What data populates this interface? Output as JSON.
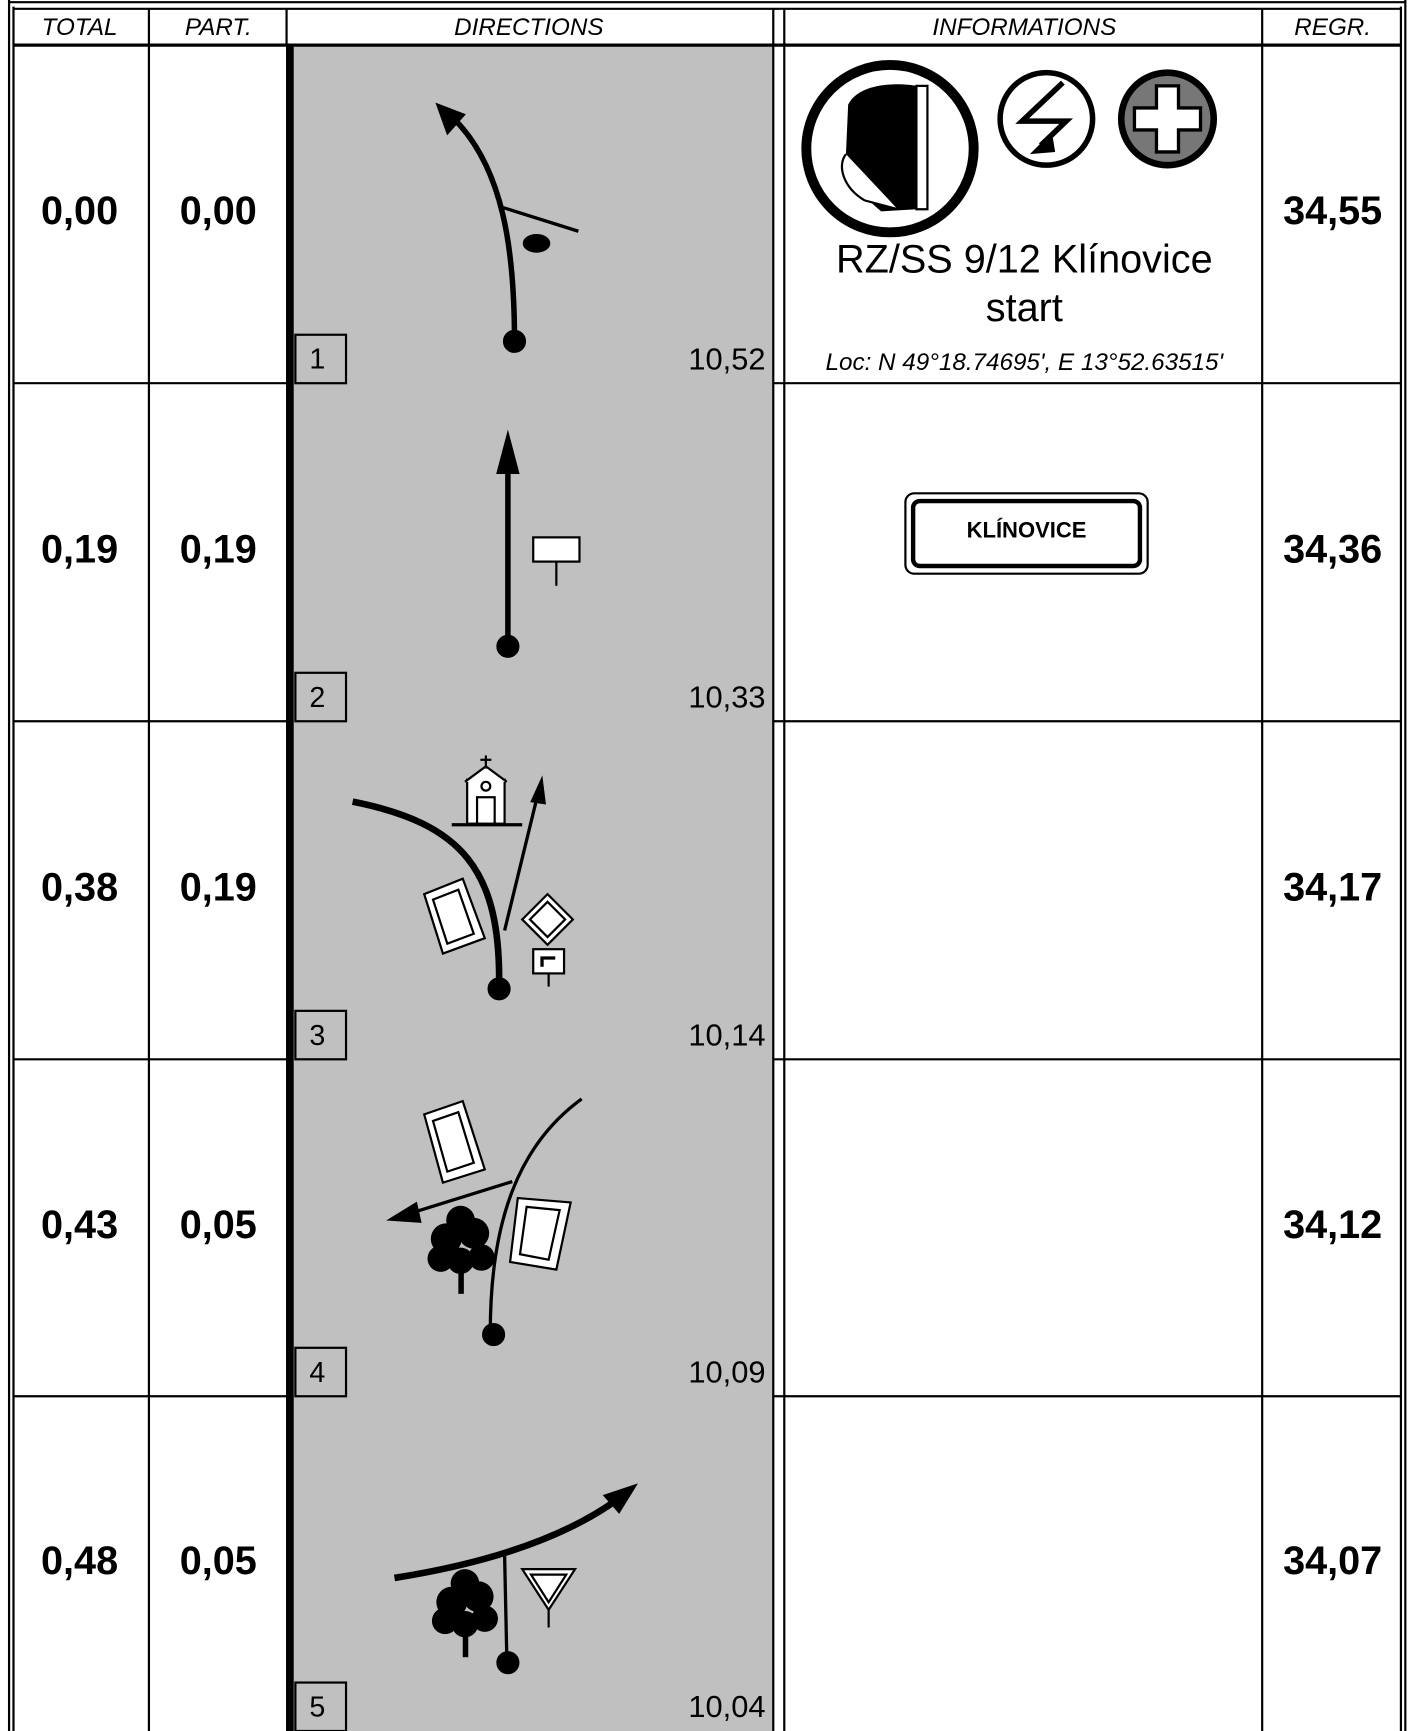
{
  "header": {
    "columns": [
      "TOTAL",
      "PART.",
      "DIRECTIONS",
      "INFORMATIONS",
      "REGR."
    ]
  },
  "rows": [
    {
      "number": "1",
      "total": "0,00",
      "partial": "0,00",
      "distance": "10,52",
      "regr": "34,55",
      "info": {
        "title_lines": [
          "RZ/SS 9/12 Klínovice",
          "start"
        ],
        "location": "Loc: N 49°18.74695', E 13°52.63515'"
      }
    },
    {
      "number": "2",
      "total": "0,19",
      "partial": "0,19",
      "distance": "10,33",
      "regr": "34,36",
      "info": {
        "sign": "KLÍNOVICE"
      }
    },
    {
      "number": "3",
      "total": "0,38",
      "partial": "0,19",
      "distance": "10,14",
      "regr": "34,17"
    },
    {
      "number": "4",
      "total": "0,43",
      "partial": "0,05",
      "distance": "10,09",
      "regr": "34,12"
    },
    {
      "number": "5",
      "total": "0,48",
      "partial": "0,05",
      "distance": "10,04",
      "regr": "34,07"
    }
  ]
}
